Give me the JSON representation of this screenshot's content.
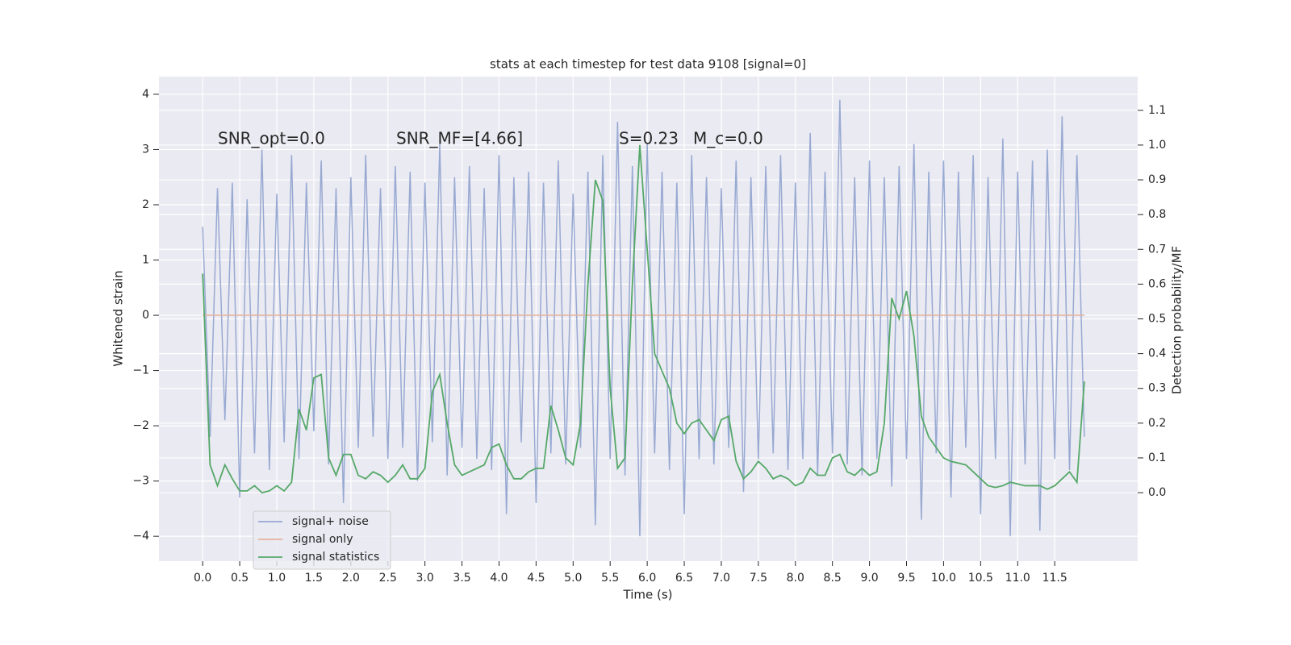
{
  "chart_data": {
    "type": "line",
    "title": "stats at each timestep for test data 9108 [signal=0]",
    "xlabel": "Time (s)",
    "ylabel": "Whitened strain",
    "y2label": "Detection probability/MF",
    "annotations": [
      "SNR_opt=0.0",
      "SNR_MF=[4.66]",
      "S=0.23",
      "M_c=0.0"
    ],
    "x": [
      0.0,
      0.1,
      0.2,
      0.3,
      0.4,
      0.5,
      0.6,
      0.7,
      0.8,
      0.9,
      1.0,
      1.1,
      1.2,
      1.3,
      1.4,
      1.5,
      1.6,
      1.7,
      1.8,
      1.9,
      2.0,
      2.1,
      2.2,
      2.3,
      2.4,
      2.5,
      2.6,
      2.7,
      2.8,
      2.9,
      3.0,
      3.1,
      3.2,
      3.3,
      3.4,
      3.5,
      3.6,
      3.7,
      3.8,
      3.9,
      4.0,
      4.1,
      4.2,
      4.3,
      4.4,
      4.5,
      4.6,
      4.7,
      4.8,
      4.9,
      5.0,
      5.1,
      5.2,
      5.3,
      5.4,
      5.5,
      5.6,
      5.7,
      5.8,
      5.9,
      6.0,
      6.1,
      6.2,
      6.3,
      6.4,
      6.5,
      6.6,
      6.7,
      6.8,
      6.9,
      7.0,
      7.1,
      7.2,
      7.3,
      7.4,
      7.5,
      7.6,
      7.7,
      7.8,
      7.9,
      8.0,
      8.1,
      8.2,
      8.3,
      8.4,
      8.5,
      8.6,
      8.7,
      8.8,
      8.9,
      9.0,
      9.1,
      9.2,
      9.3,
      9.4,
      9.5,
      9.6,
      9.7,
      9.8,
      9.9,
      10.0,
      10.1,
      10.2,
      10.3,
      10.4,
      10.5,
      10.6,
      10.7,
      10.8,
      10.9,
      11.0,
      11.1,
      11.2,
      11.3,
      11.4,
      11.5,
      11.6,
      11.7,
      11.8,
      11.9
    ],
    "series": [
      {
        "name": "signal+ noise",
        "color": "#98a9d2",
        "axis": "y",
        "values": [
          1.6,
          -2.2,
          2.3,
          -1.9,
          2.4,
          -3.3,
          2.1,
          -2.5,
          3.0,
          -2.8,
          2.2,
          -2.3,
          2.9,
          -2.6,
          2.4,
          -2.1,
          2.8,
          -2.7,
          2.3,
          -3.4,
          2.5,
          -2.4,
          2.9,
          -2.2,
          2.3,
          -2.6,
          2.7,
          -2.4,
          2.6,
          -3.0,
          2.4,
          -2.3,
          3.1,
          -2.9,
          2.5,
          -2.4,
          2.7,
          -2.6,
          2.3,
          -2.8,
          2.9,
          -3.6,
          2.5,
          -2.3,
          2.6,
          -3.4,
          2.4,
          -2.5,
          2.8,
          -2.7,
          2.2,
          -2.4,
          2.6,
          -3.8,
          2.9,
          -2.6,
          3.5,
          -2.9,
          2.7,
          -4.0,
          3.1,
          -2.5,
          2.6,
          -2.8,
          2.4,
          -3.6,
          2.9,
          -2.6,
          2.5,
          -2.7,
          2.3,
          -2.4,
          2.8,
          -3.2,
          2.5,
          -2.6,
          2.7,
          -2.5,
          2.9,
          -2.8,
          2.4,
          -2.6,
          3.3,
          -2.9,
          2.6,
          -2.5,
          3.9,
          -2.7,
          2.5,
          -2.9,
          2.8,
          -2.6,
          2.5,
          -3.1,
          2.7,
          -2.6,
          3.1,
          -3.7,
          2.6,
          -2.5,
          2.8,
          -3.3,
          2.6,
          -2.4,
          2.9,
          -3.6,
          2.5,
          -2.6,
          3.2,
          -4.0,
          2.6,
          -2.7,
          2.8,
          -3.9,
          3.0,
          -2.6,
          3.6,
          -2.8,
          2.9,
          -2.2
        ]
      },
      {
        "name": "signal only",
        "color": "#e5b19b",
        "axis": "y",
        "values": [
          0,
          0,
          0,
          0,
          0,
          0,
          0,
          0,
          0,
          0,
          0,
          0,
          0,
          0,
          0,
          0,
          0,
          0,
          0,
          0,
          0,
          0,
          0,
          0,
          0,
          0,
          0,
          0,
          0,
          0,
          0,
          0,
          0,
          0,
          0,
          0,
          0,
          0,
          0,
          0,
          0,
          0,
          0,
          0,
          0,
          0,
          0,
          0,
          0,
          0,
          0,
          0,
          0,
          0,
          0,
          0,
          0,
          0,
          0,
          0,
          0,
          0,
          0,
          0,
          0,
          0,
          0,
          0,
          0,
          0,
          0,
          0,
          0,
          0,
          0,
          0,
          0,
          0,
          0,
          0,
          0,
          0,
          0,
          0,
          0,
          0,
          0,
          0,
          0,
          0,
          0,
          0,
          0,
          0,
          0,
          0,
          0,
          0,
          0,
          0,
          0,
          0,
          0,
          0,
          0,
          0,
          0,
          0,
          0,
          0,
          0,
          0,
          0,
          0,
          0,
          0,
          0,
          0,
          0,
          0
        ]
      },
      {
        "name": "signal statistics",
        "color": "#55a868",
        "axis": "y2",
        "values": [
          0.63,
          0.08,
          0.02,
          0.08,
          0.04,
          0.005,
          0.005,
          0.02,
          0.0,
          0.005,
          0.02,
          0.005,
          0.03,
          0.24,
          0.18,
          0.33,
          0.34,
          0.1,
          0.05,
          0.11,
          0.11,
          0.05,
          0.04,
          0.06,
          0.05,
          0.03,
          0.05,
          0.08,
          0.04,
          0.04,
          0.07,
          0.29,
          0.34,
          0.2,
          0.08,
          0.05,
          0.06,
          0.07,
          0.08,
          0.13,
          0.14,
          0.08,
          0.04,
          0.04,
          0.06,
          0.07,
          0.07,
          0.25,
          0.18,
          0.1,
          0.08,
          0.2,
          0.6,
          0.9,
          0.84,
          0.3,
          0.07,
          0.1,
          0.6,
          1.0,
          0.7,
          0.4,
          0.35,
          0.3,
          0.2,
          0.17,
          0.2,
          0.21,
          0.18,
          0.15,
          0.21,
          0.22,
          0.09,
          0.04,
          0.06,
          0.09,
          0.07,
          0.04,
          0.05,
          0.04,
          0.02,
          0.03,
          0.07,
          0.05,
          0.05,
          0.1,
          0.11,
          0.06,
          0.05,
          0.07,
          0.05,
          0.06,
          0.2,
          0.56,
          0.5,
          0.58,
          0.45,
          0.22,
          0.16,
          0.13,
          0.1,
          0.09,
          0.085,
          0.08,
          0.06,
          0.04,
          0.02,
          0.015,
          0.02,
          0.03,
          0.025,
          0.02,
          0.02,
          0.02,
          0.01,
          0.02,
          0.04,
          0.06,
          0.03,
          0.32
        ]
      }
    ],
    "xlim": [
      -0.59,
      12.62
    ],
    "ylim": [
      -4.45,
      4.32
    ],
    "y2lim": [
      -0.197,
      1.197
    ],
    "xticks": [
      {
        "value": 0,
        "label": "0.0"
      },
      {
        "value": 0.5,
        "label": "0.5"
      },
      {
        "value": 1,
        "label": "1.0"
      },
      {
        "value": 1.5,
        "label": "1.5"
      },
      {
        "value": 2,
        "label": "2.0"
      },
      {
        "value": 2.5,
        "label": "2.5"
      },
      {
        "value": 3,
        "label": "3.0"
      },
      {
        "value": 3.5,
        "label": "3.5"
      },
      {
        "value": 4,
        "label": "4.0"
      },
      {
        "value": 4.5,
        "label": "4.5"
      },
      {
        "value": 5,
        "label": "5.0"
      },
      {
        "value": 5.5,
        "label": "5.5"
      },
      {
        "value": 6,
        "label": "6.0"
      },
      {
        "value": 6.5,
        "label": "6.5"
      },
      {
        "value": 7,
        "label": "7.0"
      },
      {
        "value": 7.5,
        "label": "7.5"
      },
      {
        "value": 8,
        "label": "8.0"
      },
      {
        "value": 8.5,
        "label": "8.5"
      },
      {
        "value": 9,
        "label": "9.0"
      },
      {
        "value": 9.5,
        "label": "9.5"
      },
      {
        "value": 10,
        "label": "10.0"
      },
      {
        "value": 10.5,
        "label": "10.5"
      },
      {
        "value": 11,
        "label": "11.0"
      },
      {
        "value": 11.5,
        "label": "11.5"
      }
    ],
    "yticks": [
      {
        "value": -4,
        "label": "−4"
      },
      {
        "value": -3,
        "label": "−3"
      },
      {
        "value": -2,
        "label": "−2"
      },
      {
        "value": -1,
        "label": "−1"
      },
      0,
      1,
      2,
      3,
      4
    ],
    "y2ticks": [
      {
        "value": 0,
        "label": "0.0"
      },
      {
        "value": 0.1,
        "label": "0.1"
      },
      {
        "value": 0.2,
        "label": "0.2"
      },
      {
        "value": 0.3,
        "label": "0.3"
      },
      {
        "value": 0.4,
        "label": "0.4"
      },
      {
        "value": 0.5,
        "label": "0.5"
      },
      {
        "value": 0.6,
        "label": "0.6"
      },
      {
        "value": 0.7,
        "label": "0.7"
      },
      {
        "value": 0.8,
        "label": "0.8"
      },
      {
        "value": 0.9,
        "label": "0.9"
      },
      {
        "value": 1,
        "label": "1.0"
      },
      {
        "value": 1.1,
        "label": "1.1"
      }
    ],
    "grid": true,
    "background": "#eaeaf2",
    "legend_position": "lower left"
  }
}
